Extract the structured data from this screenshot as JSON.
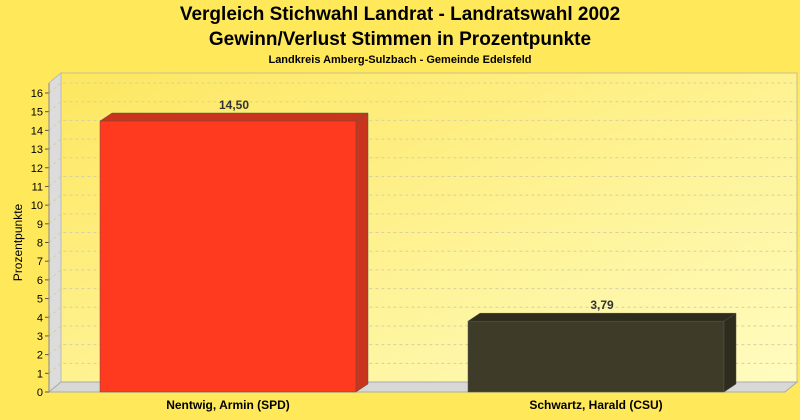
{
  "chart_data": {
    "type": "bar",
    "title": "Vergleich Stichwahl Landrat - Landratswahl 2002",
    "subtitle": "Gewinn/Verlust Stimmen in Prozentpunkte",
    "subsubtitle": "Landkreis Amberg-Sulzbach - Gemeinde Edelsfeld",
    "xlabel": "",
    "ylabel": "Prozentpunkte",
    "ylim": [
      0,
      16
    ],
    "yticks": [
      0,
      1,
      2,
      3,
      4,
      5,
      6,
      7,
      8,
      9,
      10,
      11,
      12,
      13,
      14,
      15,
      16
    ],
    "grid": true,
    "categories": [
      "Nentwig, Armin (SPD)",
      "Schwartz, Harald (CSU)"
    ],
    "values": [
      14.5,
      3.79
    ],
    "value_labels": [
      "14,50",
      "3,79"
    ],
    "colors": [
      "#ff3a1e",
      "#3e3c28"
    ],
    "top_colors": [
      "#c8351c",
      "#2e2c1c"
    ]
  }
}
